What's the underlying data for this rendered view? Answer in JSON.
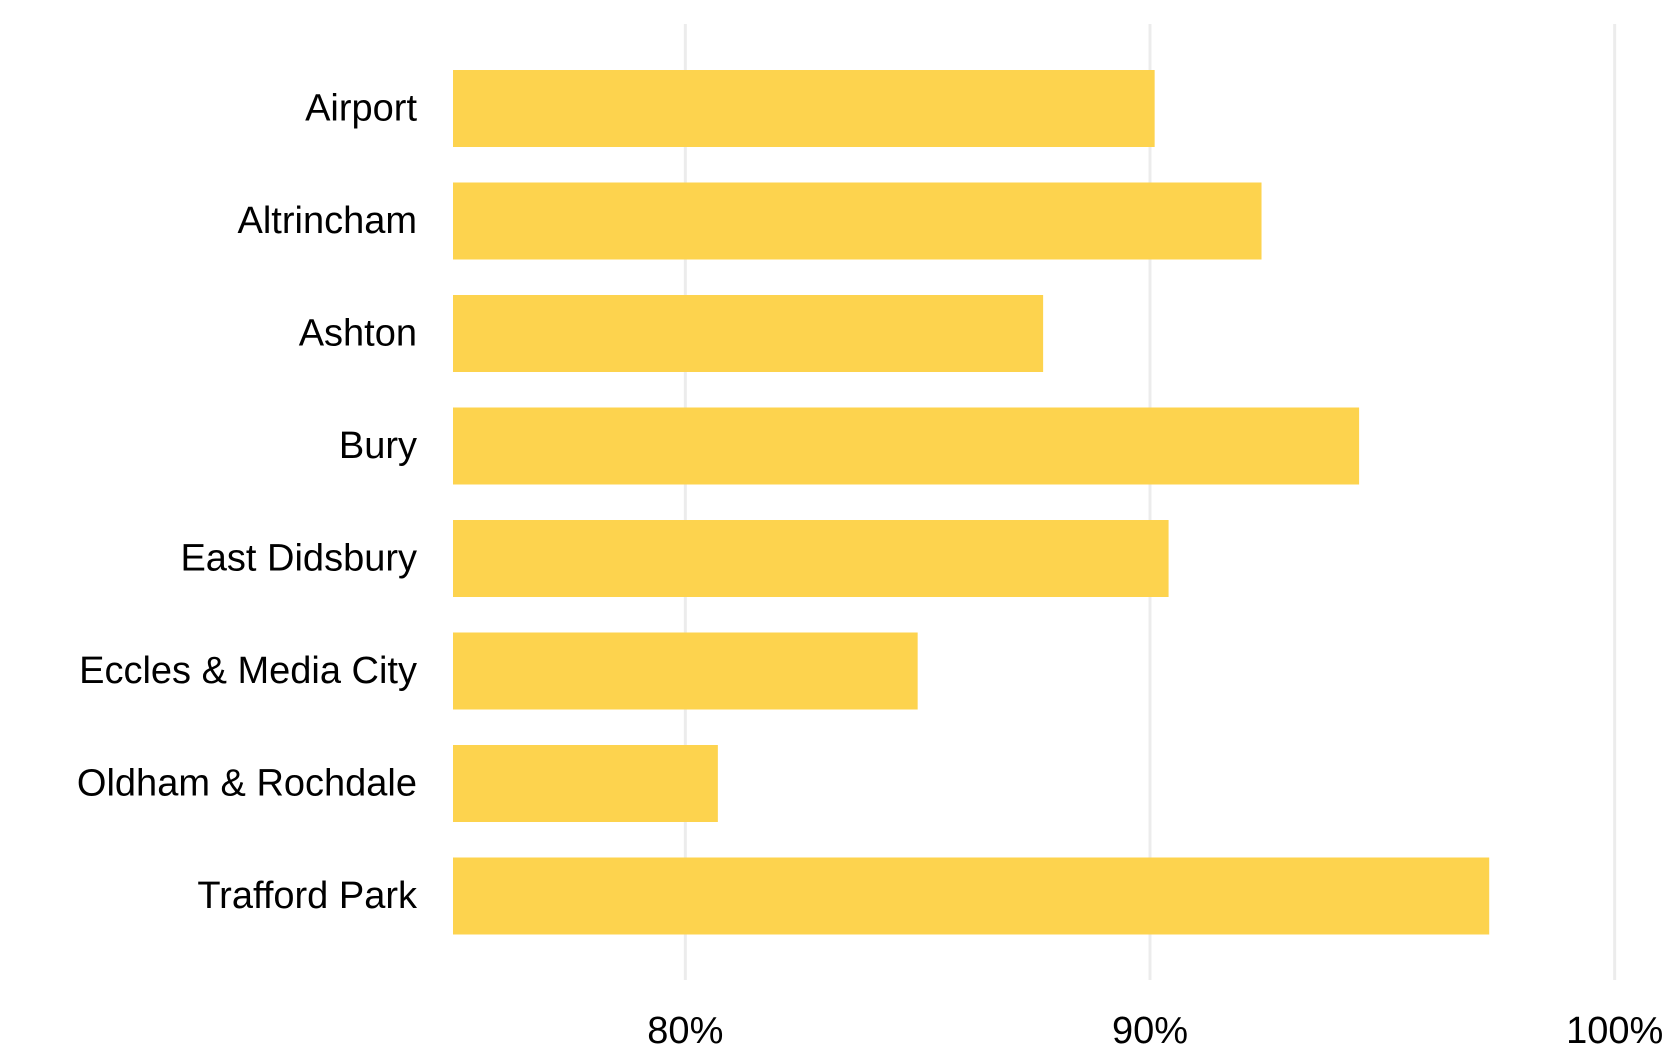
{
  "chart_data": {
    "type": "bar",
    "orientation": "horizontal",
    "title": "",
    "xlabel": "",
    "ylabel": "",
    "categories": [
      "Airport",
      "Altrincham",
      "Ashton",
      "Bury",
      "East Didsbury",
      "Eccles & Media City",
      "Oldham & Rochdale",
      "Trafford Park"
    ],
    "values": [
      90.1,
      92.4,
      87.7,
      94.5,
      90.4,
      85.0,
      80.7,
      97.3
    ],
    "value_unit": "%",
    "xlim": [
      75,
      100
    ],
    "x_ticks": [
      {
        "value": 80,
        "label": "80%"
      },
      {
        "value": 90,
        "label": "90%"
      },
      {
        "value": 100,
        "label": "100%"
      }
    ],
    "grid": "vertical",
    "legend": "none",
    "colors": {
      "bar": "#FDD34E",
      "grid": "#ececec",
      "text": "#000000"
    }
  }
}
